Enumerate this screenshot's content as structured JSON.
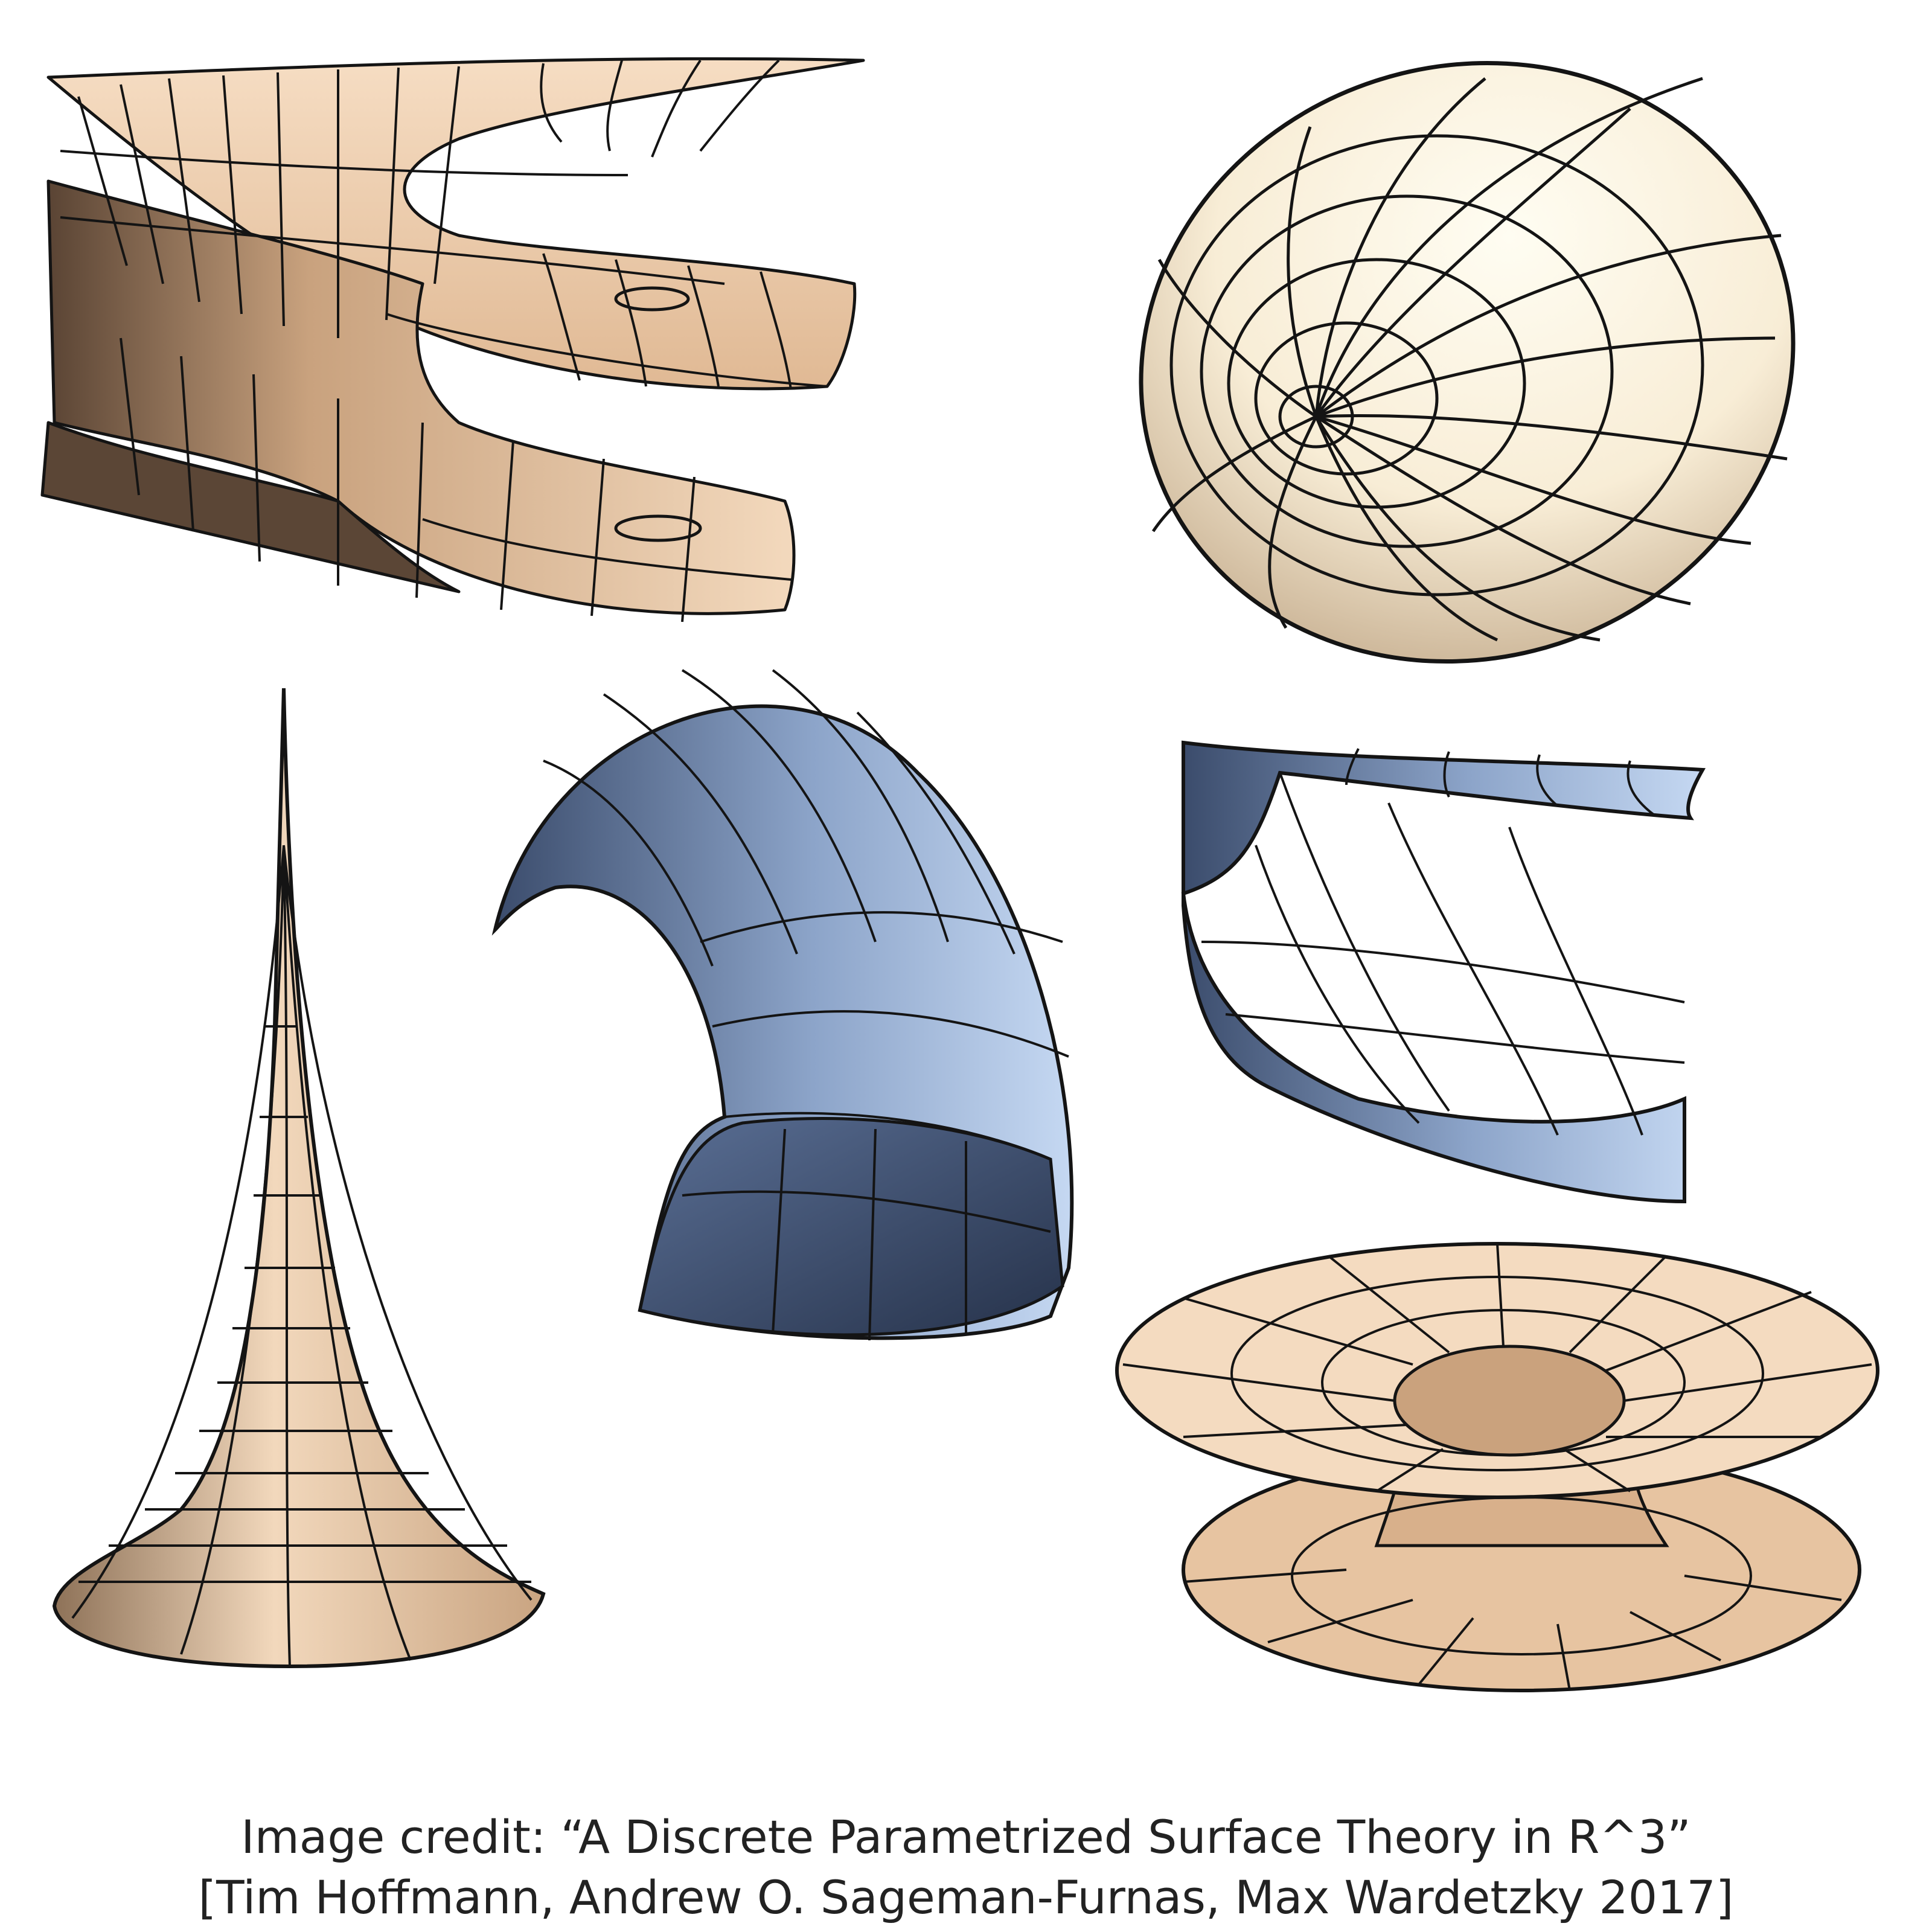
{
  "caption": {
    "line1": "Image credit: “A Discrete Parametrized Surface Theory in R^3”",
    "line2": "[Tim Hoffmann, Andrew O. Sageman-Furnas, Max Wardetzky 2017]"
  },
  "colors": {
    "tan_light": "#f5dcc0",
    "tan_mid": "#e2bc97",
    "tan_dark": "#6e5440",
    "cream": "#fffbe8",
    "blue_light": "#bcd2f0",
    "blue_mid": "#8aa2c8",
    "blue_dark": "#2f3d58",
    "mesh_line": "#141414"
  }
}
